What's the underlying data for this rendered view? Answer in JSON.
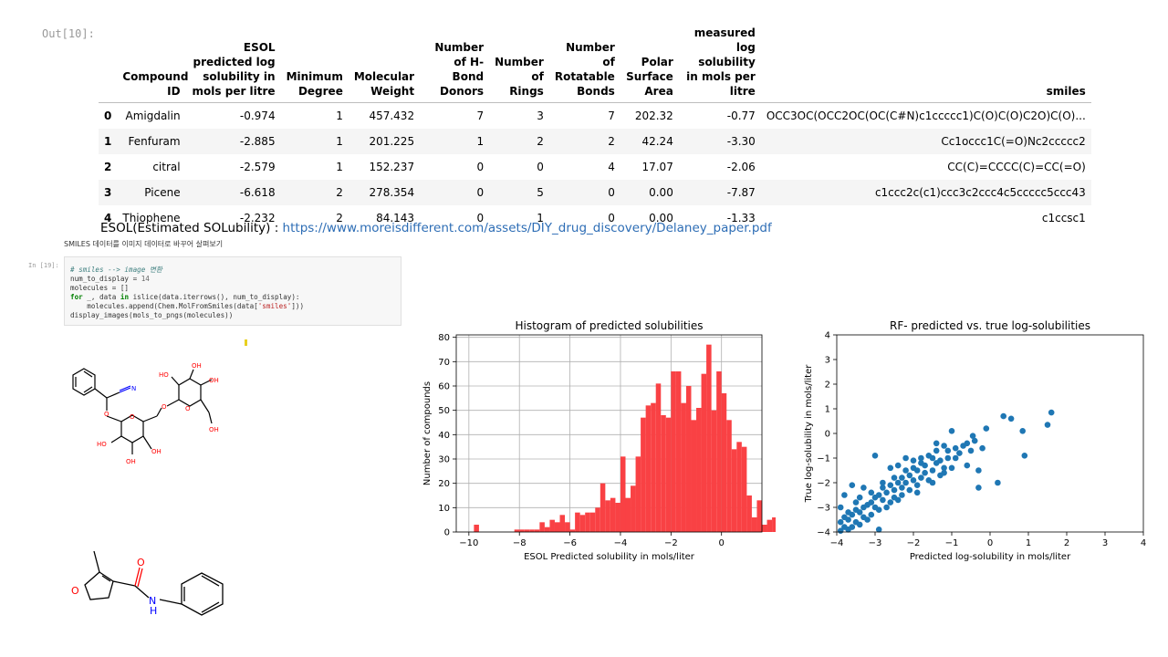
{
  "out_prompt": "Out[10]:",
  "in_prompt": "In [19]:",
  "table": {
    "columns": [
      "Compound ID",
      "ESOL predicted log solubility in mols per litre",
      "Minimum Degree",
      "Molecular Weight",
      "Number of H-Bond Donors",
      "Number of Rings",
      "Number of Rotatable Bonds",
      "Polar Surface Area",
      "measured log solubility in mols per litre",
      "smiles"
    ],
    "rows": [
      {
        "index": "0",
        "cells": [
          "Amigdalin",
          "-0.974",
          "1",
          "457.432",
          "7",
          "3",
          "7",
          "202.32",
          "-0.77",
          "OCC3OC(OCC2OC(OC(C#N)c1ccccc1)C(O)C(O)C2O)C(O)..."
        ]
      },
      {
        "index": "1",
        "cells": [
          "Fenfuram",
          "-2.885",
          "1",
          "201.225",
          "1",
          "2",
          "2",
          "42.24",
          "-3.30",
          "Cc1occc1C(=O)Nc2ccccc2"
        ]
      },
      {
        "index": "2",
        "cells": [
          "citral",
          "-2.579",
          "1",
          "152.237",
          "0",
          "0",
          "4",
          "17.07",
          "-2.06",
          "CC(C)=CCCC(C)=CC(=O)"
        ]
      },
      {
        "index": "3",
        "cells": [
          "Picene",
          "-6.618",
          "2",
          "278.354",
          "0",
          "5",
          "0",
          "0.00",
          "-7.87",
          "c1ccc2c(c1)ccc3c2ccc4c5ccccc5ccc43"
        ]
      },
      {
        "index": "4",
        "cells": [
          "Thiophene",
          "-2.232",
          "2",
          "84.143",
          "0",
          "1",
          "0",
          "0.00",
          "-1.33",
          "c1ccsc1"
        ]
      }
    ]
  },
  "esol": {
    "prefix": "ESOL(Estimated SOLubility) : ",
    "link": "https://www.moreisdifferent.com/assets/DIY_drug_discovery/Delaney_paper.pdf"
  },
  "korean_note": "SMILES 데이터를 이미지 데이터로 바꾸어 살펴보기",
  "code": {
    "comment": "# smiles --> image 변환",
    "line2_a": "num_to_display = ",
    "line2_num": "14",
    "line3": "molecules = []",
    "line4_for": "for",
    "line4_mid": " _, data ",
    "line4_in": "in",
    "line4_rest": " islice(data.iterrows(), num_to_display):",
    "line5_a": "    molecules.append(Chem.MolFromSmiles(data[",
    "line5_str": "'smiles'",
    "line5_b": "]))",
    "line6": "display_images(mols_to_pngs(molecules))"
  },
  "molecule_labels": {
    "N": "N",
    "O": "O",
    "OH": "OH",
    "HO": "HO",
    "NH": "N",
    "H": "H"
  },
  "chart_data": [
    {
      "type": "bar",
      "title": "Histogram of predicted solubilities",
      "xlabel": "ESOL Predicted solubility in mols/liter",
      "ylabel": "Number of compounds",
      "xlim": [
        -10.5,
        1.6
      ],
      "ylim": [
        0,
        81
      ],
      "xticks": [
        "−10",
        "−8",
        "−6",
        "−4",
        "−2",
        "0"
      ],
      "xtick_values": [
        -10,
        -8,
        -6,
        -4,
        -2,
        0
      ],
      "yticks": [
        "0",
        "10",
        "20",
        "30",
        "40",
        "50",
        "60",
        "70",
        "80"
      ],
      "ytick_values": [
        0,
        10,
        20,
        30,
        40,
        50,
        60,
        70,
        80
      ],
      "grid": true,
      "color": "#f94144",
      "bin_start": -9.8,
      "bin_width": 0.2,
      "values": [
        3,
        0,
        0,
        0,
        0,
        0,
        0,
        0,
        1,
        1,
        1,
        1,
        1,
        4,
        2,
        5,
        4,
        7,
        4,
        1,
        8,
        7,
        8,
        8,
        10,
        20,
        13,
        14,
        12,
        31,
        14,
        19,
        31,
        47,
        52,
        53,
        61,
        48,
        47,
        66,
        66,
        53,
        60,
        46,
        51,
        65,
        77,
        50,
        66,
        57,
        46,
        34,
        37,
        35,
        15,
        6,
        13,
        3,
        5,
        6,
        5,
        3,
        3
      ]
    },
    {
      "type": "scatter",
      "title": "RF- predicted vs. true log-solubilities",
      "xlabel": "Predicted log-solubility in mols/liter",
      "ylabel": "True log-solubility in mols/liter",
      "xlim": [
        -4,
        4
      ],
      "ylim": [
        -4,
        4
      ],
      "xticks": [
        "−4",
        "−3",
        "−2",
        "−1",
        "0",
        "1",
        "2",
        "3",
        "4"
      ],
      "xtick_values": [
        -4,
        -3,
        -2,
        -1,
        0,
        1,
        2,
        3,
        4
      ],
      "yticks": [
        "−4",
        "−3",
        "−2",
        "−1",
        "0",
        "1",
        "2",
        "3",
        "4"
      ],
      "ytick_values": [
        -4,
        -3,
        -2,
        -1,
        0,
        1,
        2,
        3,
        4
      ],
      "grid": false,
      "color": "#1f77b4",
      "points": [
        [
          1.6,
          0.85
        ],
        [
          1.5,
          0.35
        ],
        [
          0.9,
          -0.9
        ],
        [
          0.85,
          0.1
        ],
        [
          0.55,
          0.6
        ],
        [
          0.35,
          0.7
        ],
        [
          0.2,
          -2.0
        ],
        [
          -0.1,
          0.2
        ],
        [
          -0.2,
          -0.6
        ],
        [
          -0.3,
          -1.5
        ],
        [
          -0.3,
          -2.2
        ],
        [
          -0.45,
          -0.1
        ],
        [
          -0.5,
          -0.7
        ],
        [
          -0.6,
          -1.3
        ],
        [
          -0.7,
          -0.5
        ],
        [
          -0.4,
          -0.3
        ],
        [
          -0.8,
          -0.8
        ],
        [
          -0.9,
          -1.0
        ],
        [
          -1.0,
          -1.4
        ],
        [
          -1.0,
          0.1
        ],
        [
          -1.1,
          -1.0
        ],
        [
          -1.1,
          -0.7
        ],
        [
          -1.2,
          -1.4
        ],
        [
          -1.2,
          -0.5
        ],
        [
          -1.3,
          -1.1
        ],
        [
          -1.3,
          -1.7
        ],
        [
          -1.4,
          -0.7
        ],
        [
          -1.4,
          -1.2
        ],
        [
          -1.5,
          -1.0
        ],
        [
          -1.5,
          -1.5
        ],
        [
          -1.6,
          -0.9
        ],
        [
          -1.6,
          -1.9
        ],
        [
          -1.7,
          -1.3
        ],
        [
          -1.7,
          -1.6
        ],
        [
          -1.8,
          -1.2
        ],
        [
          -1.8,
          -1.8
        ],
        [
          -1.9,
          -1.5
        ],
        [
          -1.9,
          -2.1
        ],
        [
          -2.0,
          -1.4
        ],
        [
          -2.0,
          -1.9
        ],
        [
          -2.1,
          -1.7
        ],
        [
          -2.1,
          -2.3
        ],
        [
          -2.2,
          -1.5
        ],
        [
          -2.2,
          -2.0
        ],
        [
          -2.3,
          -1.8
        ],
        [
          -2.3,
          -2.5
        ],
        [
          -2.4,
          -2.0
        ],
        [
          -2.4,
          -2.7
        ],
        [
          -2.5,
          -1.8
        ],
        [
          -2.5,
          -2.3
        ],
        [
          -2.6,
          -2.1
        ],
        [
          -2.6,
          -2.8
        ],
        [
          -2.7,
          -2.4
        ],
        [
          -2.7,
          -3.0
        ],
        [
          -2.8,
          -2.2
        ],
        [
          -2.8,
          -2.7
        ],
        [
          -2.9,
          -2.5
        ],
        [
          -2.9,
          -3.1
        ],
        [
          -3.0,
          -2.6
        ],
        [
          -3.0,
          -3.0
        ],
        [
          -3.1,
          -2.8
        ],
        [
          -3.1,
          -3.3
        ],
        [
          -3.2,
          -2.9
        ],
        [
          -3.2,
          -3.5
        ],
        [
          -3.3,
          -3.0
        ],
        [
          -3.3,
          -3.4
        ],
        [
          -3.4,
          -3.2
        ],
        [
          -3.4,
          -3.7
        ],
        [
          -3.5,
          -3.1
        ],
        [
          -3.5,
          -3.6
        ],
        [
          -3.6,
          -3.3
        ],
        [
          -3.6,
          -3.8
        ],
        [
          -3.7,
          -3.5
        ],
        [
          -3.7,
          -3.9
        ],
        [
          -3.8,
          -3.4
        ],
        [
          -3.8,
          -3.8
        ],
        [
          -3.9,
          -3.6
        ],
        [
          -3.9,
          -3.95
        ],
        [
          -3.0,
          -0.9
        ],
        [
          -2.4,
          -1.3
        ],
        [
          -2.2,
          -1.0
        ],
        [
          -3.6,
          -2.1
        ],
        [
          -3.3,
          -2.2
        ],
        [
          -2.6,
          -1.4
        ],
        [
          -1.5,
          -2.0
        ],
        [
          -1.9,
          -2.4
        ],
        [
          -3.8,
          -2.5
        ],
        [
          -3.5,
          -2.8
        ],
        [
          -2.0,
          -1.1
        ],
        [
          -1.2,
          -1.6
        ],
        [
          -0.9,
          -0.6
        ],
        [
          -0.6,
          -0.4
        ],
        [
          -3.9,
          -3.0
        ],
        [
          -3.7,
          -3.2
        ],
        [
          -2.9,
          -3.9
        ],
        [
          -3.4,
          -2.6
        ],
        [
          -2.8,
          -2.0
        ],
        [
          -3.1,
          -2.4
        ],
        [
          -2.5,
          -2.6
        ],
        [
          -2.3,
          -2.2
        ],
        [
          -1.8,
          -1.0
        ],
        [
          -1.4,
          -0.4
        ]
      ]
    }
  ]
}
